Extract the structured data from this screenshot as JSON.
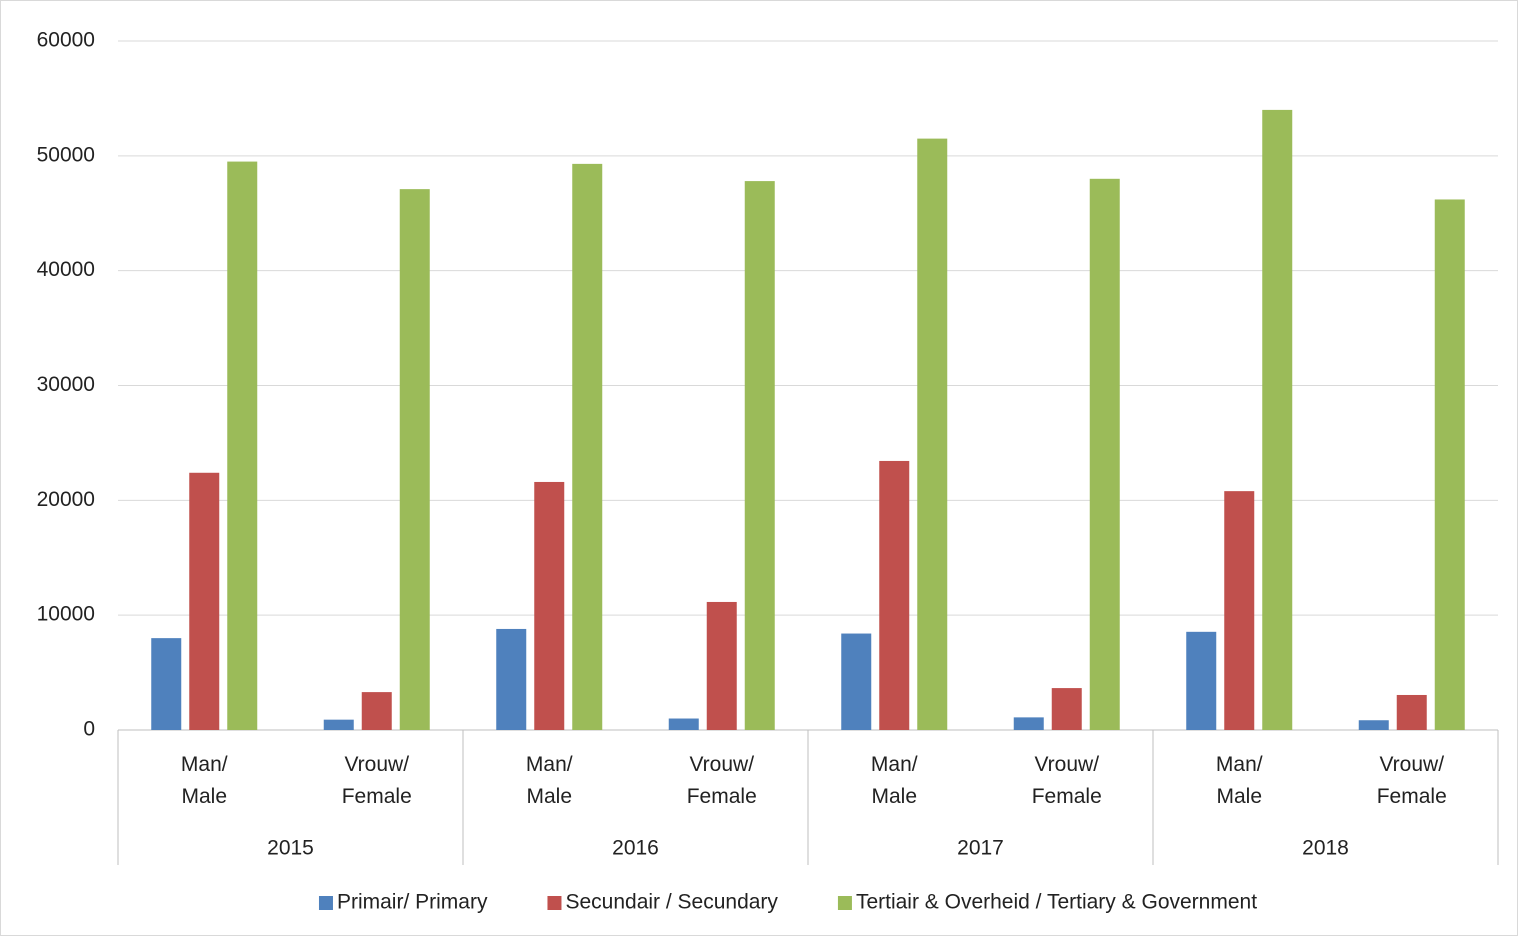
{
  "chart_data": {
    "type": "bar",
    "categories": [
      [
        "Man/",
        "Male"
      ],
      [
        "Vrouw/",
        "Female"
      ],
      [
        "Man/",
        "Male"
      ],
      [
        "Vrouw/",
        "Female"
      ],
      [
        "Man/",
        "Male"
      ],
      [
        "Vrouw/",
        "Female"
      ],
      [
        "Man/",
        "Male"
      ],
      [
        "Vrouw/",
        "Female"
      ]
    ],
    "groups": [
      "2015",
      "2016",
      "2017",
      "2018"
    ],
    "series": [
      {
        "name": "Primair/ Primary",
        "color": "#4f81bd",
        "values": [
          8000,
          900,
          8800,
          1000,
          8400,
          1100,
          8550,
          850
        ]
      },
      {
        "name": "Secundair / Secundary",
        "color": "#c0504d",
        "values": [
          22400,
          3300,
          21600,
          11150,
          23430,
          3650,
          20800,
          3050
        ]
      },
      {
        "name": "Tertiair & Overheid / Tertiary & Government",
        "color": "#9bbb59",
        "values": [
          49500,
          47100,
          49300,
          47800,
          51500,
          48000,
          54000,
          46200
        ]
      }
    ],
    "ylim": [
      0,
      60000
    ],
    "yticks": [
      0,
      10000,
      20000,
      30000,
      40000,
      50000,
      60000
    ],
    "grid": true,
    "legend": "bottom"
  }
}
